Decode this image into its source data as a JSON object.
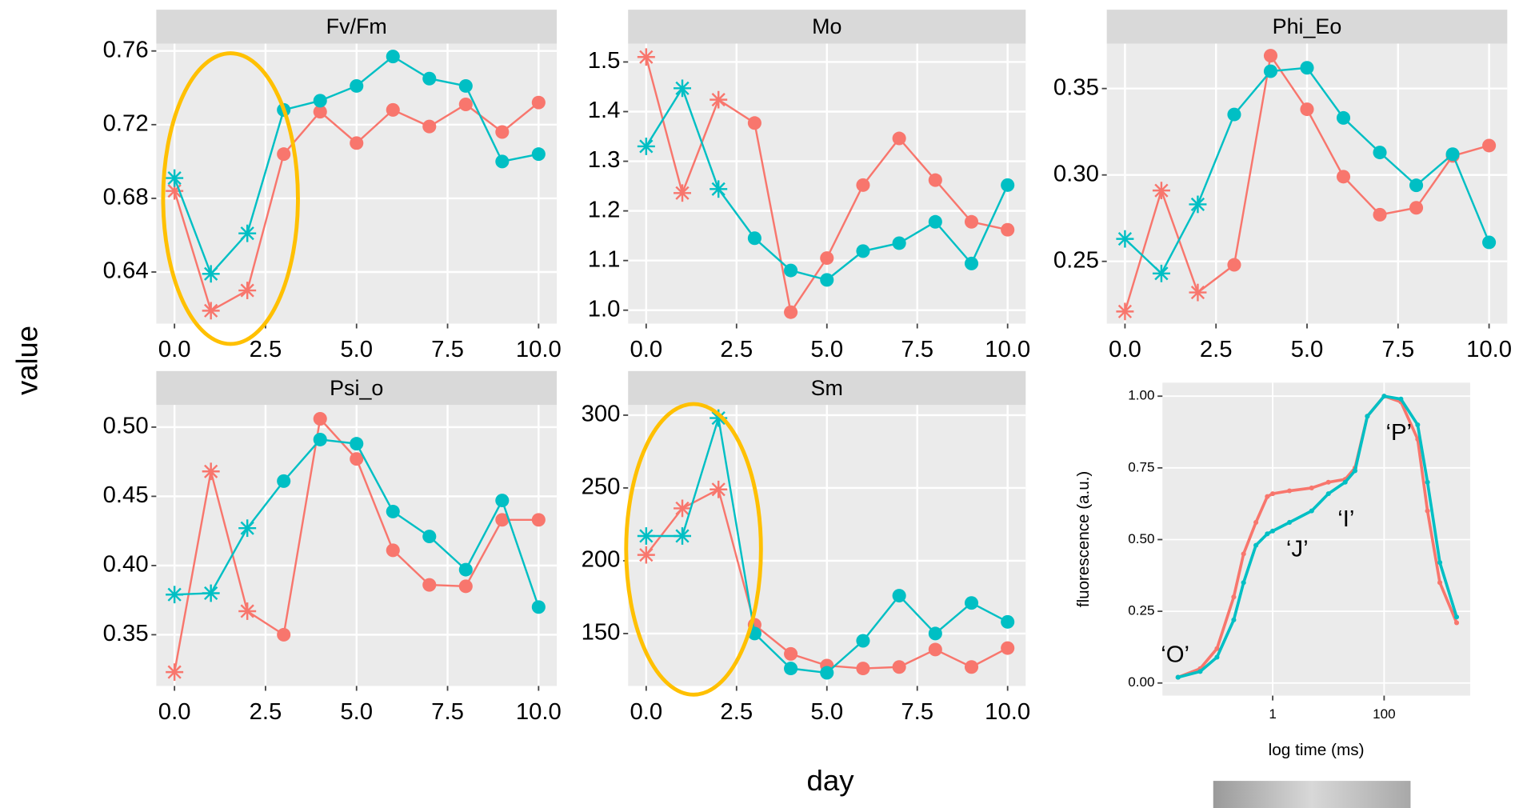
{
  "x_label": "day",
  "y_label": "value",
  "chart_data": [
    {
      "type": "line",
      "title": "Fv/Fm",
      "x": [
        0,
        1,
        2,
        3,
        4,
        5,
        6,
        7,
        8,
        9,
        10
      ],
      "xlim": [
        -0.5,
        10.5
      ],
      "xticks": [
        {
          "value": 0,
          "label": "0.0"
        },
        2.5,
        {
          "value": 5,
          "label": "5.0"
        },
        7.5,
        {
          "value": 10,
          "label": "10.0"
        }
      ],
      "ylim": [
        0.612,
        0.764
      ],
      "yticks": [
        0.64,
        0.68,
        0.72,
        0.76
      ],
      "grid": true,
      "series": [
        {
          "color": "#F8766D",
          "markers": [
            "star",
            "star",
            "star",
            "circle",
            "circle",
            "circle",
            "circle",
            "circle",
            "circle",
            "circle",
            "circle"
          ],
          "values": [
            0.684,
            0.619,
            0.63,
            0.704,
            0.727,
            0.71,
            0.728,
            0.719,
            0.731,
            0.716,
            0.732
          ]
        },
        {
          "color": "#00BFC4",
          "markers": [
            "star",
            "star",
            "star",
            "circle",
            "circle",
            "circle",
            "circle",
            "circle",
            "circle",
            "circle",
            "circle"
          ],
          "values": [
            0.691,
            0.639,
            0.661,
            0.728,
            0.733,
            0.741,
            0.757,
            0.745,
            0.741,
            0.7,
            0.704
          ]
        }
      ]
    },
    {
      "type": "line",
      "title": "Mo",
      "x": [
        0,
        1,
        2,
        3,
        4,
        5,
        6,
        7,
        8,
        9,
        10
      ],
      "xlim": [
        -0.5,
        10.5
      ],
      "xticks": [
        {
          "value": 0,
          "label": "0.0"
        },
        2.5,
        {
          "value": 5,
          "label": "5.0"
        },
        7.5,
        {
          "value": 10,
          "label": "10.0"
        }
      ],
      "ylim": [
        0.973,
        1.537
      ],
      "yticks": [
        {
          "value": 1,
          "label": "1.0"
        },
        1.1,
        1.2,
        1.3,
        1.4,
        1.5
      ],
      "grid": true,
      "series": [
        {
          "color": "#F8766D",
          "markers": [
            "star",
            "star",
            "star",
            "circle",
            "circle",
            "circle",
            "circle",
            "circle",
            "circle",
            "circle",
            "circle"
          ],
          "values": [
            1.51,
            1.236,
            1.424,
            1.377,
            0.996,
            1.105,
            1.252,
            1.346,
            1.262,
            1.178,
            1.162
          ]
        },
        {
          "color": "#00BFC4",
          "markers": [
            "star",
            "star",
            "star",
            "circle",
            "circle",
            "circle",
            "circle",
            "circle",
            "circle",
            "circle",
            "circle"
          ],
          "values": [
            1.33,
            1.447,
            1.244,
            1.145,
            1.08,
            1.061,
            1.119,
            1.135,
            1.178,
            1.094,
            1.252
          ]
        }
      ]
    },
    {
      "type": "line",
      "title": "Phi_Eo",
      "x": [
        0,
        1,
        2,
        3,
        4,
        5,
        6,
        7,
        8,
        9,
        10
      ],
      "xlim": [
        -0.5,
        10.5
      ],
      "xticks": [
        {
          "value": 0,
          "label": "0.0"
        },
        2.5,
        {
          "value": 5,
          "label": "5.0"
        },
        7.5,
        {
          "value": 10,
          "label": "10.0"
        }
      ],
      "ylim": [
        0.214,
        0.376
      ],
      "yticks": [
        0.25,
        {
          "value": 0.3,
          "label": "0.30"
        },
        0.35
      ],
      "grid": true,
      "series": [
        {
          "color": "#F8766D",
          "markers": [
            "star",
            "star",
            "star",
            "circle",
            "circle",
            "circle",
            "circle",
            "circle",
            "circle",
            "circle",
            "circle"
          ],
          "values": [
            0.221,
            0.291,
            0.232,
            0.248,
            0.369,
            0.338,
            0.299,
            0.277,
            0.281,
            0.311,
            0.317
          ]
        },
        {
          "color": "#00BFC4",
          "markers": [
            "star",
            "star",
            "star",
            "circle",
            "circle",
            "circle",
            "circle",
            "circle",
            "circle",
            "circle",
            "circle"
          ],
          "values": [
            0.263,
            0.243,
            0.283,
            0.335,
            0.36,
            0.362,
            0.333,
            0.313,
            0.294,
            0.312,
            0.261
          ]
        }
      ]
    },
    {
      "type": "line",
      "title": "Psi_o",
      "x": [
        0,
        1,
        2,
        3,
        4,
        5,
        6,
        7,
        8,
        9,
        10
      ],
      "xlim": [
        -0.5,
        10.5
      ],
      "xticks": [
        {
          "value": 0,
          "label": "0.0"
        },
        2.5,
        {
          "value": 5,
          "label": "5.0"
        },
        7.5,
        {
          "value": 10,
          "label": "10.0"
        }
      ],
      "ylim": [
        0.313,
        0.516
      ],
      "yticks": [
        0.35,
        {
          "value": 0.4,
          "label": "0.40"
        },
        0.45,
        {
          "value": 0.5,
          "label": "0.50"
        }
      ],
      "grid": true,
      "series": [
        {
          "color": "#F8766D",
          "markers": [
            "star",
            "star",
            "star",
            "circle",
            "circle",
            "circle",
            "circle",
            "circle",
            "circle",
            "circle",
            "circle"
          ],
          "values": [
            0.323,
            0.468,
            0.367,
            0.35,
            0.506,
            0.477,
            0.411,
            0.386,
            0.385,
            0.433,
            0.433
          ]
        },
        {
          "color": "#00BFC4",
          "markers": [
            "star",
            "star",
            "star",
            "circle",
            "circle",
            "circle",
            "circle",
            "circle",
            "circle",
            "circle",
            "circle"
          ],
          "values": [
            0.379,
            0.38,
            0.427,
            0.461,
            0.491,
            0.488,
            0.439,
            0.421,
            0.397,
            0.447,
            0.37
          ]
        }
      ]
    },
    {
      "type": "line",
      "title": "Sm",
      "x": [
        0,
        1,
        2,
        3,
        4,
        5,
        6,
        7,
        8,
        9,
        10
      ],
      "xlim": [
        -0.5,
        10.5
      ],
      "xticks": [
        {
          "value": 0,
          "label": "0.0"
        },
        2.5,
        {
          "value": 5,
          "label": "5.0"
        },
        7.5,
        {
          "value": 10,
          "label": "10.0"
        }
      ],
      "ylim": [
        114,
        307
      ],
      "yticks": [
        150,
        200,
        250,
        300
      ],
      "grid": true,
      "series": [
        {
          "color": "#F8766D",
          "markers": [
            "star",
            "star",
            "star",
            "circle",
            "circle",
            "circle",
            "circle",
            "circle",
            "circle",
            "circle",
            "circle"
          ],
          "values": [
            204,
            236,
            249,
            156,
            136,
            128,
            126,
            127,
            139,
            127,
            140
          ]
        },
        {
          "color": "#00BFC4",
          "markers": [
            "star",
            "star",
            "star",
            "circle",
            "circle",
            "circle",
            "circle",
            "circle",
            "circle",
            "circle",
            "circle"
          ],
          "values": [
            217,
            217,
            298,
            150,
            126,
            123,
            145,
            176,
            150,
            171,
            158
          ]
        }
      ]
    },
    {
      "type": "line",
      "x_label": "log time (ms)",
      "y_label": "fluorescence (a.u.)",
      "xscale": "log",
      "x": [
        0.02,
        0.05,
        0.1,
        0.2,
        0.3,
        0.5,
        0.8,
        1,
        2,
        5,
        10,
        20,
        30,
        50,
        100,
        200,
        400,
        600,
        1000,
        2000
      ],
      "xlim": [
        0.0105,
        3500
      ],
      "xticks": [
        1,
        100
      ],
      "ylim": [
        -0.044,
        1.047
      ],
      "yticks": [
        {
          "value": 0,
          "label": "0.00"
        },
        0.25,
        {
          "value": 0.5,
          "label": "0.50"
        },
        0.75,
        {
          "value": 1,
          "label": "1.00"
        }
      ],
      "grid": true,
      "annotations": [
        "‘O’",
        "‘J’",
        "‘I’",
        "‘P’"
      ],
      "series": [
        {
          "color": "#F8766D",
          "markers": "dots",
          "values": [
            0.02,
            0.05,
            0.12,
            0.3,
            0.45,
            0.56,
            0.65,
            0.66,
            0.67,
            0.68,
            0.7,
            0.71,
            0.75,
            0.93,
            1.0,
            0.98,
            0.85,
            0.6,
            0.35,
            0.21
          ]
        },
        {
          "color": "#00BFC4",
          "markers": "dots",
          "values": [
            0.02,
            0.04,
            0.09,
            0.22,
            0.35,
            0.48,
            0.52,
            0.53,
            0.56,
            0.6,
            0.66,
            0.7,
            0.74,
            0.93,
            1.0,
            0.99,
            0.9,
            0.7,
            0.42,
            0.23
          ]
        }
      ]
    }
  ]
}
